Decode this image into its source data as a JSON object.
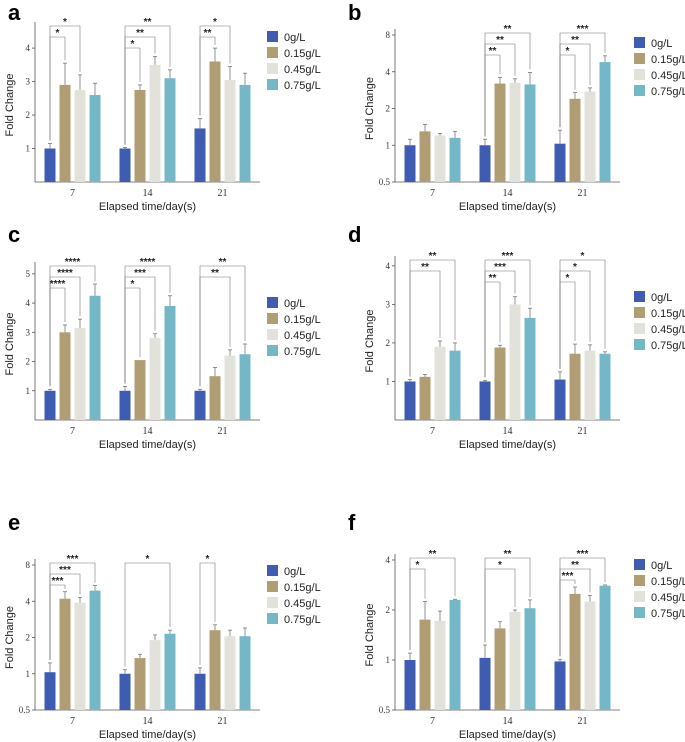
{
  "colors": [
    "#3f5cb3",
    "#b19d73",
    "#e2e2da",
    "#74b8c8"
  ],
  "chart_data": [
    {
      "panel": "a",
      "type": "bar",
      "scale": "linear",
      "xlabel": "Elapsed time/day(s)",
      "ylabel": "Fold Change",
      "ylim": [
        0,
        4.6
      ],
      "yticks": [
        "1",
        "2",
        "3",
        "4"
      ],
      "categories": [
        "7",
        "14",
        "21"
      ],
      "legend": [
        "0g/L",
        "0.15g/L",
        "0.45g/L",
        "0.75g/L"
      ],
      "series": [
        {
          "name": "0g/L",
          "values": [
            1.0,
            1.0,
            1.6
          ],
          "errors": [
            0.15,
            0.03,
            0.3
          ]
        },
        {
          "name": "0.15g/L",
          "values": [
            2.9,
            2.75,
            3.6
          ],
          "errors": [
            0.65,
            0.15,
            0.4
          ]
        },
        {
          "name": "0.45g/L",
          "values": [
            2.75,
            3.5,
            3.05
          ],
          "errors": [
            0.45,
            0.25,
            0.4
          ]
        },
        {
          "name": "0.75g/L",
          "values": [
            2.6,
            3.1,
            2.9
          ],
          "errors": [
            0.35,
            0.25,
            0.35
          ]
        }
      ],
      "significance": [
        {
          "group": 0,
          "to": 2,
          "label": "*",
          "level": 0
        },
        {
          "group": 0,
          "to": 1,
          "label": "*",
          "level": 1
        },
        {
          "group": 1,
          "to": 3,
          "label": "**",
          "level": 0
        },
        {
          "group": 1,
          "to": 2,
          "label": "**",
          "level": 1
        },
        {
          "group": 1,
          "to": 1,
          "label": "*",
          "level": 2
        },
        {
          "group": 2,
          "to": 2,
          "label": "*",
          "level": 0
        },
        {
          "group": 2,
          "to": 1,
          "label": "**",
          "level": 1
        }
      ]
    },
    {
      "panel": "b",
      "type": "bar",
      "scale": "log2",
      "xlabel": "Elapsed time/day(s)",
      "ylabel": "Fold Change",
      "ylim": [
        0.5,
        8
      ],
      "yticks": [
        "0.5",
        "1",
        "2",
        "4",
        "8"
      ],
      "categories": [
        "7",
        "14",
        "21"
      ],
      "legend": [
        "0g/L",
        "0.15g/L",
        "0.45g/L",
        "0.75g/L"
      ],
      "series": [
        {
          "name": "0g/L",
          "values": [
            1.0,
            1.0,
            1.03
          ],
          "errors": [
            0.12,
            0.12,
            0.3
          ]
        },
        {
          "name": "0.15g/L",
          "values": [
            1.3,
            3.2,
            2.4
          ],
          "errors": [
            0.18,
            0.4,
            0.3
          ]
        },
        {
          "name": "0.45g/L",
          "values": [
            1.2,
            3.25,
            2.75
          ],
          "errors": [
            0.05,
            0.25,
            0.2
          ]
        },
        {
          "name": "0.75g/L",
          "values": [
            1.15,
            3.15,
            4.8
          ],
          "errors": [
            0.15,
            0.8,
            0.6
          ]
        }
      ],
      "significance": [
        {
          "group": 1,
          "to": 3,
          "label": "**",
          "level": 0
        },
        {
          "group": 1,
          "to": 2,
          "label": "**",
          "level": 1
        },
        {
          "group": 1,
          "to": 1,
          "label": "**",
          "level": 2
        },
        {
          "group": 2,
          "to": 3,
          "label": "***",
          "level": 0
        },
        {
          "group": 2,
          "to": 2,
          "label": "**",
          "level": 1
        },
        {
          "group": 2,
          "to": 1,
          "label": "*",
          "level": 2
        }
      ]
    },
    {
      "panel": "c",
      "type": "bar",
      "scale": "linear",
      "xlabel": "Elapsed time/day(s)",
      "ylabel": "Fold Change",
      "ylim": [
        0,
        5.2
      ],
      "yticks": [
        "1",
        "2",
        "3",
        "4",
        "5"
      ],
      "categories": [
        "7",
        "14",
        "21"
      ],
      "legend": [
        "0g/L",
        "0.15g/L",
        "0.45g/L",
        "0.75g/L"
      ],
      "series": [
        {
          "name": "0g/L",
          "values": [
            1.0,
            1.0,
            1.0
          ],
          "errors": [
            0.05,
            0.15,
            0.05
          ]
        },
        {
          "name": "0.15g/L",
          "values": [
            3.0,
            2.05,
            1.5
          ],
          "errors": [
            0.25,
            0.0,
            0.3
          ]
        },
        {
          "name": "0.45g/L",
          "values": [
            3.15,
            2.8,
            2.2
          ],
          "errors": [
            0.3,
            0.15,
            0.2
          ]
        },
        {
          "name": "0.75g/L",
          "values": [
            4.25,
            3.9,
            2.25
          ],
          "errors": [
            0.4,
            0.35,
            0.35
          ]
        }
      ],
      "significance": [
        {
          "group": 0,
          "to": 3,
          "label": "****",
          "level": 0
        },
        {
          "group": 0,
          "to": 2,
          "label": "****",
          "level": 1
        },
        {
          "group": 0,
          "to": 1,
          "label": "****",
          "level": 2
        },
        {
          "group": 1,
          "to": 3,
          "label": "****",
          "level": 0
        },
        {
          "group": 1,
          "to": 2,
          "label": "***",
          "level": 1
        },
        {
          "group": 1,
          "to": 1,
          "label": "*",
          "level": 2
        },
        {
          "group": 2,
          "to": 3,
          "label": "**",
          "level": 0
        },
        {
          "group": 2,
          "to": 2,
          "label": "**",
          "level": 1
        }
      ]
    },
    {
      "panel": "d",
      "type": "bar",
      "scale": "linear",
      "xlabel": "Elapsed time/day(s)",
      "ylabel": "Fold Change",
      "ylim": [
        0,
        4.1
      ],
      "yticks": [
        "1",
        "2",
        "3",
        "4"
      ],
      "categories": [
        "7",
        "14",
        "21"
      ],
      "legend": [
        "0g/L",
        "0.15g/L",
        "0.45g/L",
        "0.75g/L"
      ],
      "series": [
        {
          "name": "0g/L",
          "values": [
            1.0,
            1.0,
            1.05
          ],
          "errors": [
            0.05,
            0.03,
            0.2
          ]
        },
        {
          "name": "0.15g/L",
          "values": [
            1.12,
            1.88,
            1.72
          ],
          "errors": [
            0.06,
            0.06,
            0.25
          ]
        },
        {
          "name": "0.45g/L",
          "values": [
            1.9,
            3.0,
            1.8
          ],
          "errors": [
            0.15,
            0.2,
            0.15
          ]
        },
        {
          "name": "0.75g/L",
          "values": [
            1.8,
            2.65,
            1.72
          ],
          "errors": [
            0.2,
            0.25,
            0.05
          ]
        }
      ],
      "significance": [
        {
          "group": 0,
          "to": 3,
          "label": "**",
          "level": 0
        },
        {
          "group": 0,
          "to": 2,
          "label": "**",
          "level": 1
        },
        {
          "group": 1,
          "to": 3,
          "label": "***",
          "level": 0
        },
        {
          "group": 1,
          "to": 2,
          "label": "***",
          "level": 1
        },
        {
          "group": 1,
          "to": 1,
          "label": "**",
          "level": 2
        },
        {
          "group": 2,
          "to": 3,
          "label": "*",
          "level": 0
        },
        {
          "group": 2,
          "to": 2,
          "label": "*",
          "level": 1
        },
        {
          "group": 2,
          "to": 1,
          "label": "*",
          "level": 2
        }
      ]
    },
    {
      "panel": "e",
      "type": "bar",
      "scale": "log2",
      "xlabel": "Elapsed time/day(s)",
      "ylabel": "Fold Change",
      "ylim": [
        0.5,
        8
      ],
      "yticks": [
        "0.5",
        "1",
        "2",
        "4",
        "8"
      ],
      "categories": [
        "7",
        "14",
        "21"
      ],
      "legend": [
        "0g/L",
        "0.15g/L",
        "0.45g/L",
        "0.75g/L"
      ],
      "series": [
        {
          "name": "0g/L",
          "values": [
            1.03,
            1.0,
            1.0
          ],
          "errors": [
            0.2,
            0.08,
            0.12
          ]
        },
        {
          "name": "0.15g/L",
          "values": [
            4.2,
            1.35,
            2.3
          ],
          "errors": [
            0.6,
            0.1,
            0.25
          ]
        },
        {
          "name": "0.45g/L",
          "values": [
            3.9,
            1.9,
            2.05
          ],
          "errors": [
            0.4,
            0.2,
            0.25
          ]
        },
        {
          "name": "0.75g/L",
          "values": [
            4.9,
            2.15,
            2.05
          ],
          "errors": [
            0.5,
            0.15,
            0.35
          ]
        }
      ],
      "significance": [
        {
          "group": 0,
          "to": 3,
          "label": "***",
          "level": 0
        },
        {
          "group": 0,
          "to": 2,
          "label": "***",
          "level": 1
        },
        {
          "group": 0,
          "to": 1,
          "label": "***",
          "level": 2
        },
        {
          "group": 1,
          "to": 3,
          "label": "*",
          "level": 0
        },
        {
          "group": 2,
          "to": 1,
          "label": "*",
          "level": 0
        }
      ]
    },
    {
      "panel": "f",
      "type": "bar",
      "scale": "log2",
      "xlabel": "Elapsed time/day(s)",
      "ylabel": "Fold Change",
      "ylim": [
        0.5,
        4
      ],
      "yticks": [
        "0.5",
        "1",
        "2",
        "4"
      ],
      "categories": [
        "7",
        "14",
        "21"
      ],
      "legend": [
        "0g/L",
        "0.15g/L",
        "0.45g/L",
        "0.75g/L"
      ],
      "series": [
        {
          "name": "0g/L",
          "values": [
            1.0,
            1.03,
            0.98
          ],
          "errors": [
            0.1,
            0.2,
            0.03
          ]
        },
        {
          "name": "0.15g/L",
          "values": [
            1.75,
            1.55,
            2.5
          ],
          "errors": [
            0.5,
            0.15,
            0.25
          ]
        },
        {
          "name": "0.45g/L",
          "values": [
            1.72,
            1.95,
            2.25
          ],
          "errors": [
            0.25,
            0.05,
            0.2
          ]
        },
        {
          "name": "0.75g/L",
          "values": [
            2.3,
            2.05,
            2.8
          ],
          "errors": [
            0.02,
            0.25,
            0.03
          ]
        }
      ],
      "significance": [
        {
          "group": 0,
          "to": 3,
          "label": "**",
          "level": 0
        },
        {
          "group": 0,
          "to": 1,
          "label": "*",
          "level": 1
        },
        {
          "group": 1,
          "to": 3,
          "label": "**",
          "level": 0
        },
        {
          "group": 1,
          "to": 2,
          "label": "*",
          "level": 1
        },
        {
          "group": 2,
          "to": 3,
          "label": "***",
          "level": 0
        },
        {
          "group": 2,
          "to": 2,
          "label": "**",
          "level": 1
        },
        {
          "group": 2,
          "to": 1,
          "label": "***",
          "level": 2
        }
      ]
    }
  ]
}
